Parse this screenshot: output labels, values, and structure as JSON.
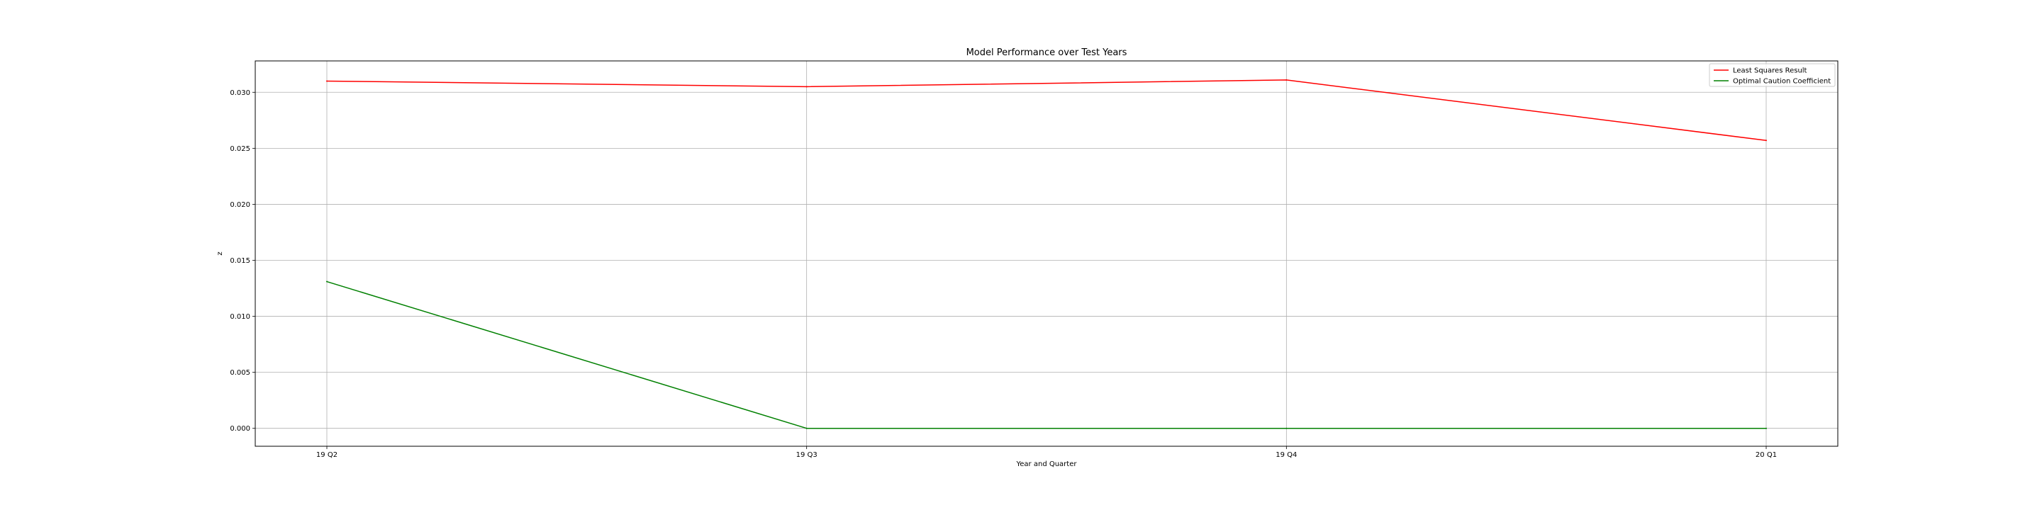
{
  "chart_data": {
    "type": "line",
    "title": "Model Performance over Test Years",
    "xlabel": "Year and Quarter",
    "ylabel": "z",
    "categories": [
      "19 Q2",
      "19 Q3",
      "19 Q4",
      "20 Q1"
    ],
    "series": [
      {
        "name": "Least Squares Result",
        "color": "#ff0000",
        "values": [
          0.031,
          0.0305,
          0.0311,
          0.0257
        ]
      },
      {
        "name": "Optimal Caution Coefficient",
        "color": "#008000",
        "values": [
          0.0131,
          0.0,
          0.0,
          0.0
        ]
      }
    ],
    "yticks": [
      0.0,
      0.005,
      0.01,
      0.015,
      0.02,
      0.025,
      0.03
    ],
    "ytick_labels": [
      "0.000",
      "0.005",
      "0.010",
      "0.015",
      "0.020",
      "0.025",
      "0.030"
    ],
    "ylim": [
      -0.0016,
      0.0328
    ],
    "grid": true,
    "legend_position": "top-right"
  }
}
